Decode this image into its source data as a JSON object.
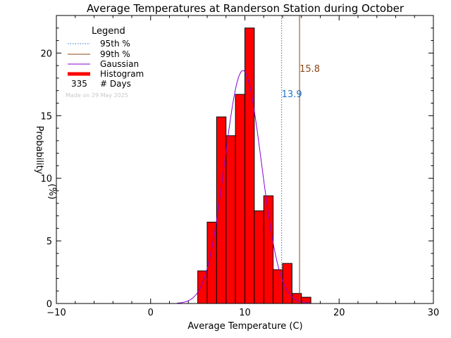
{
  "chart_data": {
    "type": "bar",
    "title": "Average Temperatures at Randerson Station during October",
    "xlabel": "Average Temperature (C)",
    "ylabel_line1": "Probability",
    "ylabel_line2": "(%)",
    "xlim": [
      -10,
      30
    ],
    "ylim": [
      0,
      23
    ],
    "xticks": [
      -10,
      0,
      10,
      20,
      30
    ],
    "yticks": [
      0,
      5,
      10,
      15,
      20
    ],
    "legend": {
      "title": "Legend",
      "placement": "top-left",
      "entries": [
        {
          "label": "95th %",
          "color": "#1f77d4",
          "style": "dotted"
        },
        {
          "label": "99th %",
          "color": "#8b4513",
          "style": "solid"
        },
        {
          "label": "Gaussian",
          "color": "#8a00d4",
          "style": "solid"
        },
        {
          "label": "Histogram",
          "color": "#ff0000",
          "style": "thick"
        }
      ],
      "days_count": "335",
      "days_label": "# Days",
      "made_on": "Made on 29 May 2025"
    },
    "histogram": {
      "bin_edges": [
        5,
        6,
        7,
        8,
        9,
        10,
        11,
        12,
        13,
        14,
        15,
        16,
        17
      ],
      "values": [
        2.6,
        6.5,
        14.9,
        13.4,
        16.7,
        22.0,
        7.4,
        8.6,
        2.7,
        3.2,
        0.8,
        0.5
      ],
      "color": "#ff0000"
    },
    "gaussian": {
      "mean": 9.8,
      "sigma": 1.95,
      "peak": 18.6,
      "color": "#8a00d4"
    },
    "percentiles": [
      {
        "name": "95th %",
        "value": 13.9,
        "label": "13.9",
        "color": "#1f77d4",
        "style": "dotted"
      },
      {
        "name": "99th %",
        "value": 15.8,
        "label": "15.8",
        "color": "#8b4513",
        "style": "solid"
      }
    ]
  }
}
